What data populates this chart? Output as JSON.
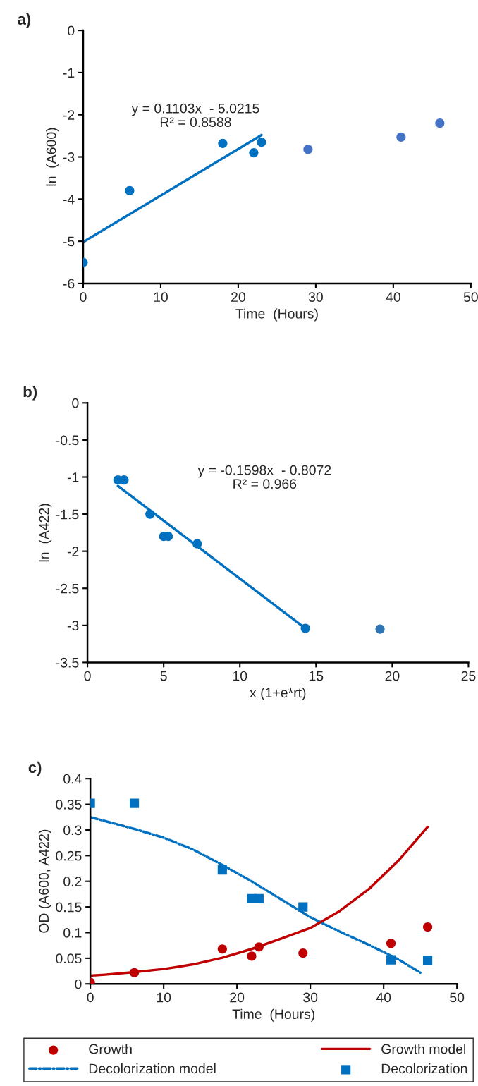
{
  "chart_data": [
    {
      "type": "scatter",
      "title": "a)",
      "xlabel": "Time  (Hours)",
      "ylabel": "ln  (A600)",
      "xlim": [
        0,
        50
      ],
      "xticks": [
        0,
        10,
        20,
        30,
        40,
        50
      ],
      "ylim": [
        -6,
        0
      ],
      "yticks": [
        -6,
        -5,
        -4,
        -3,
        -2,
        -1,
        0
      ],
      "grid": false,
      "legend": false,
      "annotations": [
        "y = 0.1103x  - 5.0215\nR² = 0.8588"
      ],
      "series": [
        {
          "type": "scatter",
          "color": "#0070c0",
          "marker": "circle",
          "x": [
            0,
            6,
            18,
            22,
            23
          ],
          "values": [
            -5.5,
            -3.8,
            -2.68,
            -2.9,
            -2.65
          ]
        },
        {
          "type": "scatter",
          "color": "#4472c4",
          "marker": "circle",
          "x": [
            29,
            41,
            46
          ],
          "values": [
            -2.82,
            -2.53,
            -2.2
          ]
        },
        {
          "type": "line",
          "color": "#0070c0",
          "marker": "none",
          "line_style": "solid",
          "x": [
            0,
            23
          ],
          "values": [
            -5.02,
            -2.48
          ]
        }
      ]
    },
    {
      "type": "scatter",
      "title": "b)",
      "xlabel": "x (1+e*rt)",
      "ylabel": "ln  (A422)",
      "xlim": [
        0,
        25
      ],
      "xticks": [
        0,
        5,
        10,
        15,
        20,
        25
      ],
      "ylim": [
        -3.5,
        0
      ],
      "yticks": [
        -3.5,
        -3,
        -2.5,
        -2,
        -1.5,
        -1,
        -0.5,
        0
      ],
      "grid": false,
      "legend": false,
      "annotations": [
        "y = -0.1598x  - 0.8072\nR² = 0.966"
      ],
      "series": [
        {
          "type": "scatter",
          "color": "#0070c0",
          "marker": "circle",
          "x": [
            2,
            2.4,
            4.1,
            5,
            5.3,
            7.2,
            14.3
          ],
          "values": [
            -1.04,
            -1.04,
            -1.5,
            -1.8,
            -1.8,
            -1.9,
            -3.04
          ]
        },
        {
          "type": "scatter",
          "color": "#2e75b6",
          "marker": "circle",
          "x": [
            19.2
          ],
          "values": [
            -3.05
          ]
        },
        {
          "type": "line",
          "color": "#0070c0",
          "marker": "none",
          "line_style": "solid",
          "x": [
            2,
            14.3
          ],
          "values": [
            -1.12,
            -3.04
          ]
        }
      ]
    },
    {
      "type": "scatter",
      "title": "c)",
      "xlabel": "Time  (Hours)",
      "ylabel": "OD (A600, A422)",
      "xlim": [
        0,
        50
      ],
      "xticks": [
        0,
        10,
        20,
        30,
        40,
        50
      ],
      "ylim": [
        0,
        0.4
      ],
      "yticks": [
        0,
        0.05,
        0.1,
        0.15,
        0.2,
        0.25,
        0.3,
        0.35,
        0.4
      ],
      "grid": false,
      "legend": "bottom",
      "series": [
        {
          "type": "scatter",
          "name": "Growth",
          "color": "#c00000",
          "marker": "circle",
          "x": [
            0,
            6,
            18,
            22,
            23,
            29,
            41,
            46
          ],
          "values": [
            0.003,
            0.022,
            0.068,
            0.054,
            0.072,
            0.06,
            0.079,
            0.111
          ]
        },
        {
          "type": "line",
          "name": "Decolorization model",
          "color": "#0070c0",
          "marker": "none",
          "line_style": "dashdot",
          "x": [
            0,
            6,
            10,
            14,
            18,
            22,
            26,
            30,
            34,
            38,
            42,
            45
          ],
          "values": [
            0.325,
            0.302,
            0.285,
            0.262,
            0.232,
            0.2,
            0.165,
            0.13,
            0.102,
            0.076,
            0.048,
            0.022
          ]
        },
        {
          "type": "line",
          "name": "Growth model",
          "color": "#c00000",
          "marker": "none",
          "line_style": "solid",
          "x": [
            0,
            2,
            6,
            10,
            14,
            18,
            22,
            26,
            30,
            34,
            38,
            42,
            46
          ],
          "values": [
            0.016,
            0.018,
            0.023,
            0.029,
            0.038,
            0.051,
            0.068,
            0.088,
            0.109,
            0.142,
            0.185,
            0.24,
            0.306
          ]
        },
        {
          "type": "scatter",
          "name": "Decolorization",
          "color": "#0070c0",
          "marker": "square",
          "x": [
            0,
            6,
            18,
            22,
            23,
            29,
            41,
            46
          ],
          "values": [
            0.352,
            0.352,
            0.222,
            0.166,
            0.166,
            0.15,
            0.047,
            0.046
          ]
        }
      ]
    }
  ]
}
